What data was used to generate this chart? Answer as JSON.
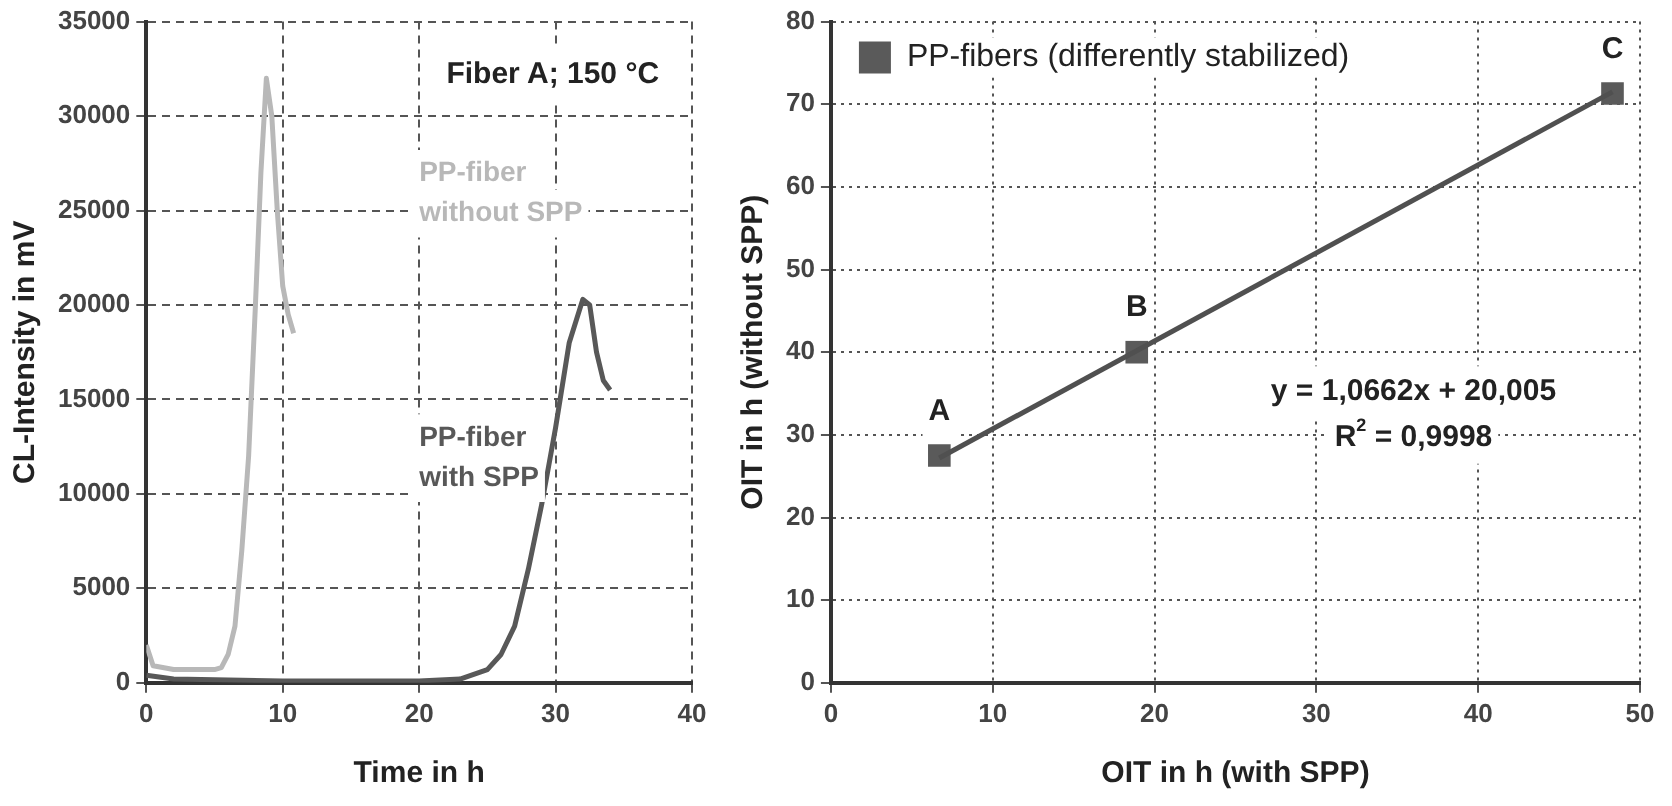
{
  "chart_data": [
    {
      "type": "line",
      "xlabel": "Time in h",
      "ylabel": "CL-Intensity in mV",
      "xlim": [
        0,
        40
      ],
      "xticks": [
        0,
        10,
        20,
        30,
        40
      ],
      "ylim": [
        0,
        35000
      ],
      "yticks": [
        0,
        5000,
        10000,
        15000,
        20000,
        25000,
        30000,
        35000
      ],
      "grid": true,
      "line_style": "solid",
      "legend": false,
      "marker": "none",
      "annotations": [
        "Fiber A; 150 °C"
      ],
      "series": [
        {
          "name": "PP-fiber without SPP",
          "color": "#b8b8b8",
          "x": [
            0,
            0.5,
            2,
            4,
            5,
            5.5,
            6,
            6.5,
            7,
            7.5,
            8,
            8.4,
            8.8,
            9.2,
            9.6,
            10,
            10.4,
            10.8
          ],
          "values": [
            2000,
            900,
            700,
            700,
            700,
            800,
            1500,
            3000,
            7000,
            12000,
            20000,
            27000,
            32000,
            30000,
            25000,
            21000,
            19500,
            18500
          ]
        },
        {
          "name": "PP-fiber with SPP",
          "color": "#585858",
          "x": [
            0,
            2,
            10,
            20,
            23,
            25,
            26,
            27,
            28,
            29,
            30,
            31,
            32,
            32.5,
            33,
            33.5,
            34
          ],
          "values": [
            400,
            200,
            100,
            100,
            200,
            700,
            1500,
            3000,
            6000,
            9500,
            13500,
            18000,
            20300,
            20000,
            17500,
            16000,
            15500
          ]
        }
      ]
    },
    {
      "type": "scatter",
      "xlabel": "OIT in h (with SPP)",
      "ylabel": "OIT in h (without SPP)",
      "xlim": [
        0,
        50
      ],
      "xticks": [
        0,
        10,
        20,
        30,
        40,
        50
      ],
      "ylim": [
        0,
        80
      ],
      "yticks": [
        0,
        10,
        20,
        30,
        40,
        50,
        60,
        70,
        80
      ],
      "grid": true,
      "line_style": "solid",
      "legend": "top left",
      "annotations": [
        {
          "text": "A",
          "x": 6.7,
          "y": 27.5
        },
        {
          "text": "B",
          "x": 18.9,
          "y": 40
        },
        {
          "text": "C",
          "x": 48.3,
          "y": 71.3
        },
        "y = 1,0662x + 20,005",
        "R$^{2}$ = 0,9998"
      ],
      "series": [
        {
          "type": "line",
          "color": "#505050",
          "marker": "none",
          "x": [
            6.7,
            48.3
          ],
          "values": [
            27.2,
            71.5
          ]
        },
        {
          "type": "scatter",
          "name": "PP-fibers (differently stabilized)",
          "color": "#5a5a5a",
          "marker": "square",
          "x": [
            6.7,
            18.9,
            48.3
          ],
          "values": [
            27.5,
            40,
            71.3
          ]
        }
      ]
    }
  ]
}
